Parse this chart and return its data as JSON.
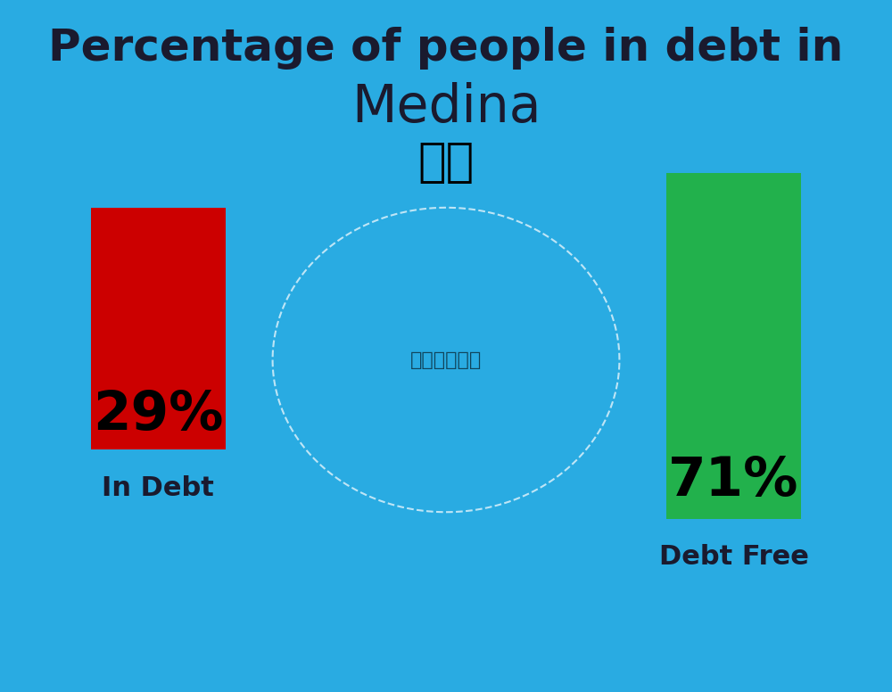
{
  "title_line1": "Percentage of people in debt in",
  "title_line2": "Medina",
  "title_fontsize": 36,
  "title2_fontsize": 42,
  "background_color": "#29ABE2",
  "bar1_value": 29,
  "bar1_label": "29%",
  "bar1_color": "#CC0000",
  "bar1_text_color": "#000000",
  "bar1_caption": "In Debt",
  "bar2_value": 71,
  "bar2_label": "71%",
  "bar2_color": "#22B14C",
  "bar2_text_color": "#000000",
  "bar2_caption": "Debt Free",
  "bar_fontsize": 44,
  "caption_fontsize": 22,
  "label_color": "#1a1a2e",
  "flag_emoji": "🇸🇦"
}
